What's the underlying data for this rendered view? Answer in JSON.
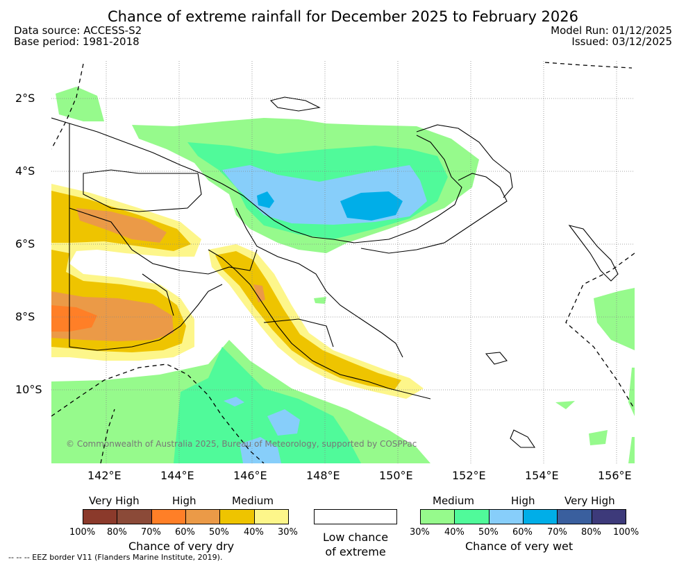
{
  "header": {
    "title": "Chance of extreme rainfall for December 2025 to February 2026",
    "data_source": "Data source: ACCESS-S2",
    "base_period": "Base period: 1981-2018",
    "model_run": "Model Run: 01/12/2025",
    "issued": "Issued: 03/12/2025"
  },
  "map": {
    "lat_labels": [
      "2°S",
      "4°S",
      "6°S",
      "8°S",
      "10°S"
    ],
    "lon_labels": [
      "142°E",
      "144°E",
      "146°E",
      "148°E",
      "150°E",
      "152°E",
      "154°E",
      "156°E"
    ],
    "copyright": "© Commonwealth of Australia 2025, Bureau of Meteorology, supported by COSPPac"
  },
  "legend": {
    "dry": {
      "categories": [
        "Very High",
        "High",
        "Medium"
      ],
      "colors": [
        "#8b3a2b",
        "#8b4a38",
        "#ff7f27",
        "#eb9a47",
        "#eec400",
        "#fdf68a"
      ],
      "percents": [
        "100%",
        "80%",
        "70%",
        "60%",
        "50%",
        "40%",
        "30%"
      ],
      "title": "Chance of very dry"
    },
    "neutral": {
      "line1": "Low chance",
      "line2": "of extreme"
    },
    "wet": {
      "categories": [
        "Medium",
        "High",
        "Very High"
      ],
      "colors": [
        "#96fa8c",
        "#50fa9a",
        "#87cefa",
        "#00aee8",
        "#3a5f9e",
        "#3d3a7a"
      ],
      "percents": [
        "30%",
        "40%",
        "50%",
        "60%",
        "70%",
        "80%",
        "100%"
      ],
      "title": "Chance of very wet"
    }
  },
  "footnote": "--  --  -- EEZ border V11 (Flanders Marine Institute, 2019)."
}
